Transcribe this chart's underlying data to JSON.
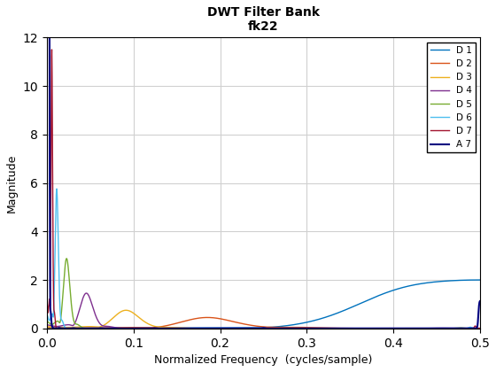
{
  "title_line1": "DWT Filter Bank",
  "title_line2": "fk22",
  "xlabel": "Normalized Frequency  (cycles/sample)",
  "ylabel": "Magnitude",
  "xlim": [
    0,
    0.5
  ],
  "ylim": [
    0,
    12
  ],
  "yticks": [
    0,
    2,
    4,
    6,
    8,
    10,
    12
  ],
  "xticks": [
    0,
    0.1,
    0.2,
    0.3,
    0.4,
    0.5
  ],
  "legend_labels": [
    "D 1",
    "D 2",
    "D 3",
    "D 4",
    "D 5",
    "D 6",
    "D 7",
    "A 7"
  ],
  "colors": [
    "#0072BD",
    "#D95319",
    "#EDB120",
    "#7E2F8E",
    "#77AC30",
    "#4DBEEE",
    "#A2142F",
    "#000080"
  ],
  "n_levels": 7,
  "background_color": "#ffffff",
  "grid_color": "#d0d0d0"
}
